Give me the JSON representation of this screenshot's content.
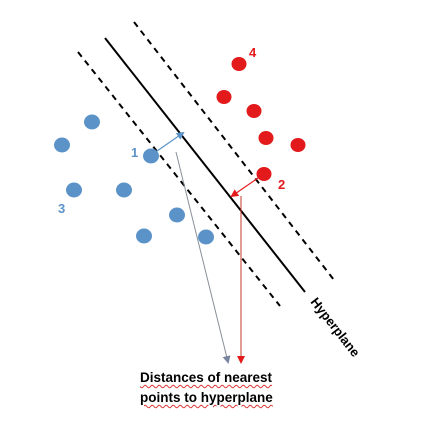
{
  "colors": {
    "class_a": "#5b93c9",
    "class_b": "#e31a1c",
    "line": "#000000",
    "grey_arrow": "#8a8f99"
  },
  "labels": {
    "blue_support": "1",
    "red_support": "2",
    "blue_class": "3",
    "red_class": "4",
    "hyperplane": "Hyperplane"
  },
  "caption": {
    "line1": "Distances of nearest",
    "line2": "points to hyperplane"
  }
}
